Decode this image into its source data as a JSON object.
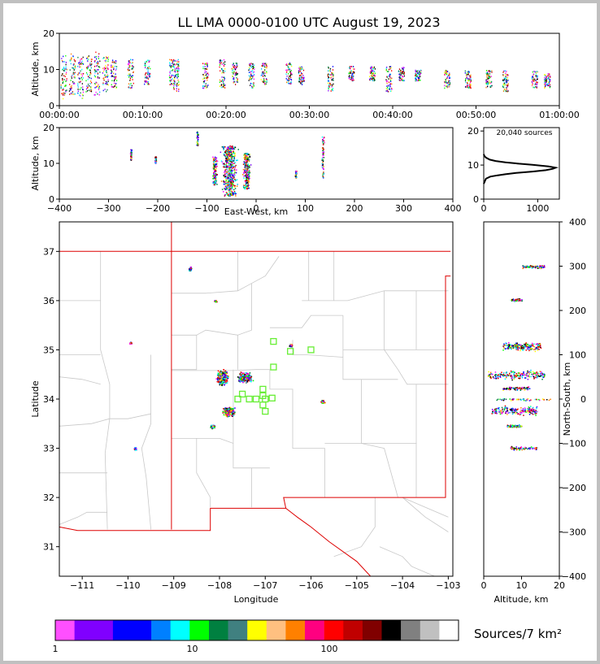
{
  "title": "LL LMA 0000-0100 UTC August 19, 2023",
  "chart_data": [
    {
      "id": "altitude-vs-time",
      "type": "scatter",
      "ylabel": "Altitude, km",
      "ylim": [
        0,
        20
      ],
      "yticks": [
        "0",
        "10",
        "20"
      ],
      "xlim": [
        "00:00:00",
        "01:00:00"
      ],
      "xticks": [
        "00:00:00",
        "00:10:00",
        "00:20:00",
        "00:30:00",
        "00:40:00",
        "00:50:00",
        "01:00:00"
      ],
      "bands_minutes": [
        {
          "t": 0.5,
          "lo": 2,
          "hi": 14
        },
        {
          "t": 1.5,
          "lo": 3,
          "hi": 15
        },
        {
          "t": 2.5,
          "lo": 2,
          "hi": 14
        },
        {
          "t": 3.5,
          "lo": 4,
          "hi": 14
        },
        {
          "t": 4.5,
          "lo": 3,
          "hi": 15
        },
        {
          "t": 5.5,
          "lo": 4,
          "hi": 14
        },
        {
          "t": 6.5,
          "lo": 5,
          "hi": 13
        },
        {
          "t": 8.5,
          "lo": 5,
          "hi": 13
        },
        {
          "t": 10.5,
          "lo": 6,
          "hi": 13
        },
        {
          "t": 13.5,
          "lo": 6,
          "hi": 13
        },
        {
          "t": 14.0,
          "lo": 4,
          "hi": 13
        },
        {
          "t": 17.5,
          "lo": 5,
          "hi": 12
        },
        {
          "t": 19.5,
          "lo": 5,
          "hi": 13
        },
        {
          "t": 21.0,
          "lo": 6,
          "hi": 12
        },
        {
          "t": 23.0,
          "lo": 5,
          "hi": 12
        },
        {
          "t": 24.5,
          "lo": 6,
          "hi": 12
        },
        {
          "t": 27.5,
          "lo": 6,
          "hi": 12
        },
        {
          "t": 29.0,
          "lo": 6,
          "hi": 11
        },
        {
          "t": 32.5,
          "lo": 4,
          "hi": 11
        },
        {
          "t": 35.0,
          "lo": 7,
          "hi": 11
        },
        {
          "t": 37.5,
          "lo": 7,
          "hi": 11
        },
        {
          "t": 39.5,
          "lo": 4,
          "hi": 11
        },
        {
          "t": 41.0,
          "lo": 7,
          "hi": 11
        },
        {
          "t": 43.0,
          "lo": 7,
          "hi": 10
        },
        {
          "t": 46.5,
          "lo": 5,
          "hi": 10
        },
        {
          "t": 49.0,
          "lo": 5,
          "hi": 10
        },
        {
          "t": 51.5,
          "lo": 5,
          "hi": 10
        },
        {
          "t": 53.5,
          "lo": 4,
          "hi": 10
        },
        {
          "t": 57.0,
          "lo": 5,
          "hi": 10
        },
        {
          "t": 58.5,
          "lo": 5,
          "hi": 9
        }
      ]
    },
    {
      "id": "altitude-vs-east-west",
      "type": "scatter",
      "xlabel": "East-West, km",
      "ylabel": "Altitude, km",
      "xlim": [
        -400,
        400
      ],
      "ylim": [
        0,
        20
      ],
      "xticks": [
        "−400",
        "−300",
        "−200",
        "−100",
        "0",
        "100",
        "200",
        "300",
        "400"
      ],
      "yticks": [
        "0",
        "10",
        "20"
      ],
      "clusters": [
        {
          "x": -255,
          "lo": 11,
          "hi": 14,
          "w": 4
        },
        {
          "x": -205,
          "lo": 10,
          "hi": 12,
          "w": 4
        },
        {
          "x": -120,
          "lo": 15,
          "hi": 19,
          "w": 4
        },
        {
          "x": -85,
          "lo": 4,
          "hi": 12,
          "w": 12
        },
        {
          "x": -55,
          "lo": 1,
          "hi": 15,
          "w": 40
        },
        {
          "x": -20,
          "lo": 3,
          "hi": 13,
          "w": 20
        },
        {
          "x": 80,
          "lo": 6,
          "hi": 8,
          "w": 4
        },
        {
          "x": 135,
          "lo": 6,
          "hi": 18,
          "w": 6
        }
      ]
    },
    {
      "id": "source-height-histogram",
      "type": "line",
      "annotation": "20,040 sources",
      "xlim": [
        0,
        1400
      ],
      "ylim": [
        0,
        21
      ],
      "xticks": [
        "0",
        "1000"
      ],
      "yticks": [
        "0",
        "10",
        "20"
      ],
      "points": [
        [
          0,
          4.5
        ],
        [
          40,
          6
        ],
        [
          120,
          6.6
        ],
        [
          260,
          7
        ],
        [
          400,
          7.3
        ],
        [
          600,
          7.7
        ],
        [
          900,
          8.1
        ],
        [
          1150,
          8.5
        ],
        [
          1280,
          8.9
        ],
        [
          1330,
          9.2
        ],
        [
          1200,
          9.6
        ],
        [
          900,
          10.1
        ],
        [
          650,
          10.4
        ],
        [
          400,
          10.8
        ],
        [
          220,
          11.2
        ],
        [
          110,
          11.6
        ],
        [
          40,
          12.2
        ],
        [
          10,
          12.7
        ],
        [
          0,
          13.2
        ]
      ]
    },
    {
      "id": "plan-view-map",
      "type": "scatter",
      "xlabel": "Longitude",
      "ylabel": "Latitude",
      "xlim": [
        -111.5,
        -102.9
      ],
      "ylim": [
        30.4,
        37.6
      ],
      "xticks": [
        "−111",
        "−110",
        "−109",
        "−108",
        "−107",
        "−106",
        "−105",
        "−104",
        "−103"
      ],
      "yticks": [
        "31",
        "32",
        "33",
        "34",
        "35",
        "36",
        "37"
      ],
      "clusters": [
        {
          "lon": -107.95,
          "lat": 34.45,
          "rx": 0.15,
          "ry": 0.18
        },
        {
          "lon": -107.45,
          "lat": 34.45,
          "rx": 0.18,
          "ry": 0.12
        },
        {
          "lon": -107.8,
          "lat": 33.75,
          "rx": 0.15,
          "ry": 0.12
        },
        {
          "lon": -108.15,
          "lat": 33.45,
          "rx": 0.06,
          "ry": 0.05
        },
        {
          "lon": -105.75,
          "lat": 33.95,
          "rx": 0.06,
          "ry": 0.04
        },
        {
          "lon": -108.65,
          "lat": 36.65,
          "rx": 0.04,
          "ry": 0.05
        },
        {
          "lon": -108.1,
          "lat": 36.0,
          "rx": 0.04,
          "ry": 0.03
        },
        {
          "lon": -109.95,
          "lat": 35.15,
          "rx": 0.03,
          "ry": 0.03
        },
        {
          "lon": -109.85,
          "lat": 33.0,
          "rx": 0.03,
          "ry": 0.05
        },
        {
          "lon": -106.45,
          "lat": 35.1,
          "rx": 0.04,
          "ry": 0.04
        }
      ],
      "stations": [
        [
          -106.82,
          35.17
        ],
        [
          -106.45,
          34.97
        ],
        [
          -106.0,
          35.0
        ],
        [
          -106.82,
          34.65
        ],
        [
          -107.05,
          34.2
        ],
        [
          -107.6,
          34.0
        ],
        [
          -107.5,
          34.1
        ],
        [
          -107.35,
          34.0
        ],
        [
          -107.2,
          34.0
        ],
        [
          -107.0,
          34.0
        ],
        [
          -106.85,
          34.02
        ],
        [
          -107.05,
          34.07
        ],
        [
          -107.05,
          33.88
        ],
        [
          -107.0,
          33.75
        ]
      ]
    },
    {
      "id": "altitude-vs-north-south",
      "type": "scatter",
      "xlabel": "Altitude, km",
      "ylabel": "North-South, km",
      "xlim": [
        0,
        20
      ],
      "ylim": [
        -400,
        400
      ],
      "xticks": [
        "0",
        "10",
        "20"
      ],
      "yticks": [
        "−400",
        "−300",
        "−200",
        "−100",
        "0",
        "100",
        "200",
        "300",
        "400"
      ],
      "clusters": [
        {
          "y": 55,
          "lo": 1,
          "hi": 16,
          "h": 25
        },
        {
          "y": 25,
          "lo": 5,
          "hi": 12,
          "h": 10
        },
        {
          "y": 0,
          "lo": 3,
          "hi": 18,
          "h": 6
        },
        {
          "y": -25,
          "lo": 2,
          "hi": 14,
          "h": 25
        },
        {
          "y": -60,
          "lo": 6,
          "hi": 10,
          "h": 8
        },
        {
          "y": 120,
          "lo": 5,
          "hi": 15,
          "h": 25
        },
        {
          "y": 225,
          "lo": 7,
          "hi": 10,
          "h": 8
        },
        {
          "y": 300,
          "lo": 10,
          "hi": 16,
          "h": 10
        },
        {
          "y": -110,
          "lo": 7,
          "hi": 14,
          "h": 10
        }
      ]
    }
  ],
  "colorbar": {
    "title": "Sources/7 km²",
    "tick_labels": [
      "1",
      "10",
      "100"
    ],
    "colors": [
      "#ff4fff",
      "#8000ff",
      "#8000ff",
      "#0000ff",
      "#0000ff",
      "#0080ff",
      "#00ffff",
      "#00ff00",
      "#008040",
      "#408080",
      "#ffff00",
      "#ffc080",
      "#ff8000",
      "#ff0080",
      "#ff0000",
      "#c00000",
      "#800000",
      "#000000",
      "#808080",
      "#c0c0c0",
      "#ffffff"
    ]
  },
  "palette": {
    "source_colors": [
      "#ff00ff",
      "#8000ff",
      "#0000ff",
      "#00c0ff",
      "#00ffff",
      "#00ff00",
      "#008040",
      "#ffff00",
      "#ff8000",
      "#ff0000",
      "#c00000",
      "#000000"
    ],
    "state_border": "#dd0000",
    "county_border": "#c8c8c8",
    "station_marker": "#66ee33"
  }
}
